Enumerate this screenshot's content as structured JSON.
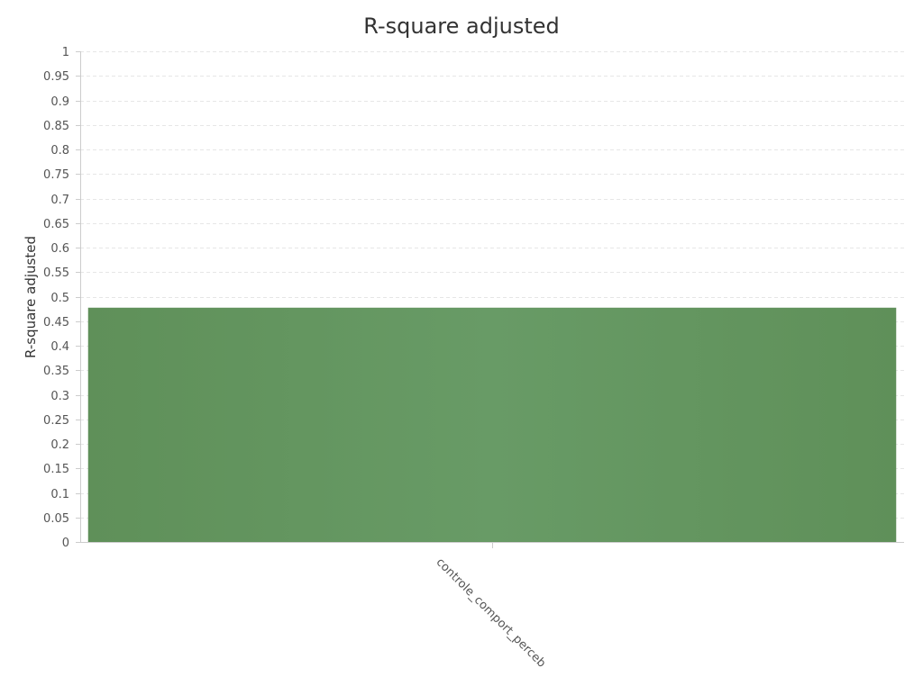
{
  "chart_data": {
    "type": "bar",
    "title": "R-square adjusted",
    "xlabel": "",
    "ylabel": "R-square adjusted",
    "categories": [
      "controle_comport_perceb"
    ],
    "series": [
      {
        "values": [
          0.477
        ]
      }
    ],
    "ylim": [
      0,
      1
    ],
    "y_ticks": [
      0,
      0.05,
      0.1,
      0.15,
      0.2,
      0.25,
      0.3,
      0.35,
      0.4,
      0.45,
      0.5,
      0.55,
      0.6,
      0.65,
      0.7,
      0.75,
      0.8,
      0.85,
      0.9,
      0.95,
      1
    ],
    "grid": true,
    "legend": "none",
    "bar_color": "#64965f"
  }
}
